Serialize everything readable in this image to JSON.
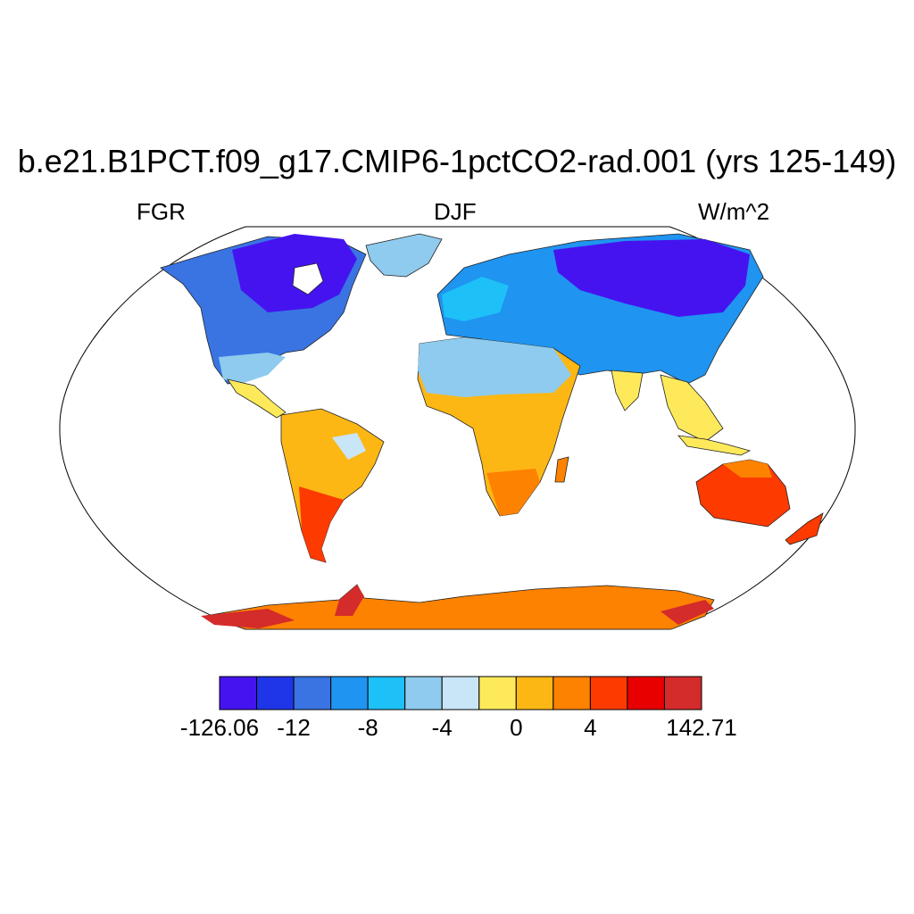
{
  "title": "b.e21.B1PCT.f09_g17.CMIP6-1pctCO2-rad.001 (yrs 125-149)",
  "left_label": "FGR",
  "center_label": "DJF",
  "right_label": "W/m^2",
  "colorbar": {
    "colors": [
      "#4513f0",
      "#1f35e8",
      "#3a74e3",
      "#1f94f0",
      "#1ec0f8",
      "#8fcbee",
      "#c8e6f8",
      "#fde95a",
      "#fdb714",
      "#fd8200",
      "#fd3a00",
      "#e80000",
      "#d42b2b"
    ],
    "tick_labels": [
      "-126.06",
      "-12",
      "-8",
      "-4",
      "0",
      "4",
      "142.71"
    ]
  },
  "regions": [
    {
      "name": "North America",
      "color": "#3a74e3"
    },
    {
      "name": "Hudson Bay / Canadian Arctic",
      "color": "#4513f0"
    },
    {
      "name": "Greenland",
      "color": "#8fcbee"
    },
    {
      "name": "Eurasia",
      "color": "#1f94f0"
    },
    {
      "name": "Siberia",
      "color": "#4513f0"
    },
    {
      "name": "Sahara",
      "color": "#8fcbee"
    },
    {
      "name": "Tropical Africa",
      "color": "#fdb714"
    },
    {
      "name": "Southern Africa",
      "color": "#fd8200"
    },
    {
      "name": "South America",
      "color": "#fdb714"
    },
    {
      "name": "Patagonia",
      "color": "#fd3a00"
    },
    {
      "name": "Australia",
      "color": "#fd3a00"
    },
    {
      "name": "Southeast Asia",
      "color": "#fde95a"
    },
    {
      "name": "Antarctica",
      "color": "#fd8200"
    }
  ]
}
